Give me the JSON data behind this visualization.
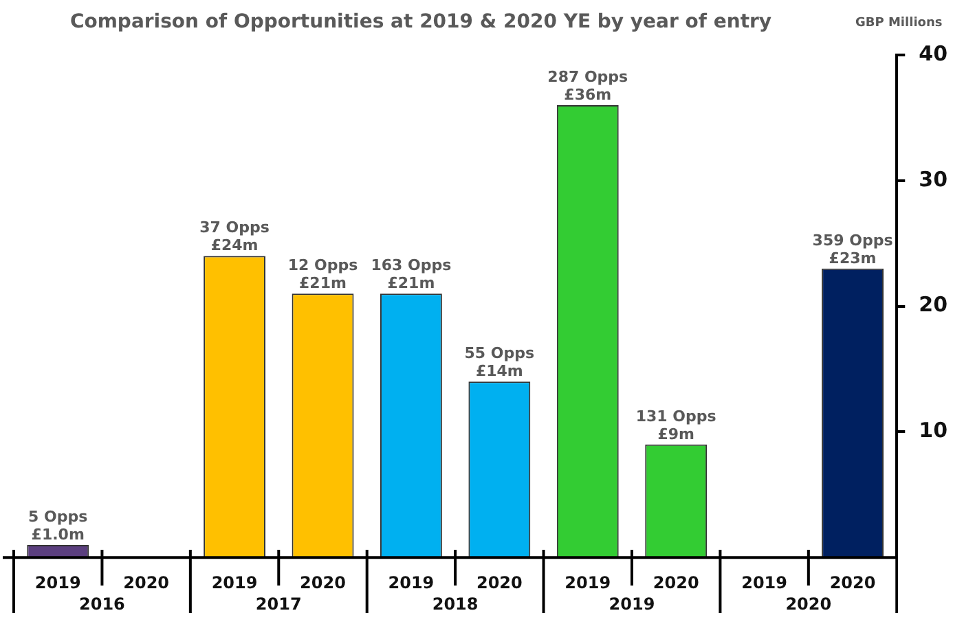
{
  "chart_data": {
    "type": "bar",
    "title": "Comparison of Opportunities at 2019 & 2020 YE by year of entry",
    "ylabel": "GBP Millions",
    "categories": [
      "2019",
      "2020",
      "2019",
      "2020",
      "2019",
      "2020",
      "2019",
      "2020",
      "2019",
      "2020"
    ],
    "values": [
      1.0,
      null,
      24,
      21,
      21,
      14,
      36,
      9,
      null,
      23
    ],
    "colors": [
      "#5b3f7f",
      "#ffffff",
      "#ffc000",
      "#ffc000",
      "#00b0f0",
      "#00b0f0",
      "#33cc33",
      "#33cc33",
      "#ffffff",
      "#002060"
    ],
    "value_labels": [
      "£1.0m",
      null,
      "£24m",
      "£21m",
      "£21m",
      "£14m",
      "£36m",
      "£9m",
      null,
      "£23m"
    ],
    "annotations": [
      "2016",
      "2017",
      "2018",
      "2019",
      "2020",
      "5 Opps",
      "37 Opps",
      "12 Opps",
      "163 Opps",
      "55 Opps",
      "287 Opps",
      "131 Opps",
      "359 Opps"
    ],
    "ylim": [
      0,
      40
    ],
    "yticks": [
      10,
      20,
      30,
      40
    ],
    "grid": false,
    "legend": false
  }
}
